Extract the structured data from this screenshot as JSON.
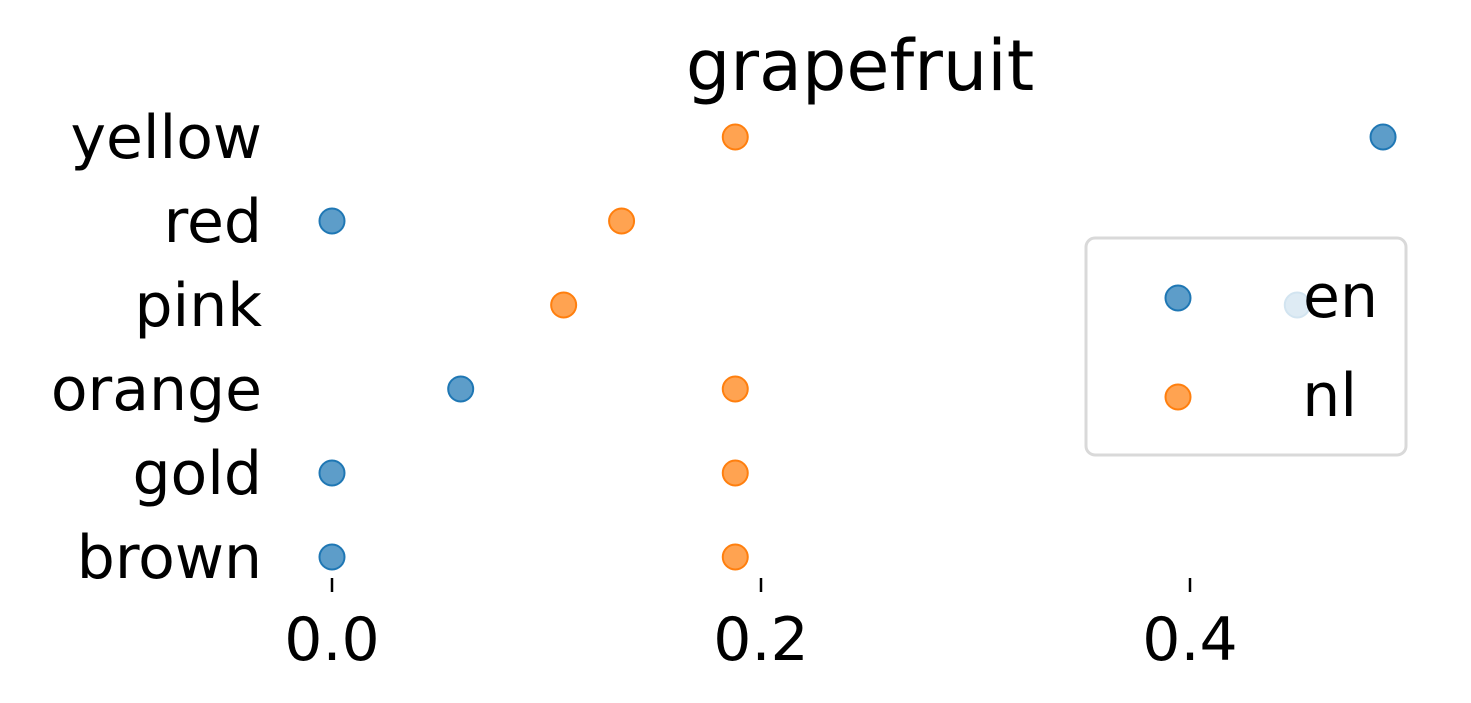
{
  "chart_data": {
    "type": "scatter",
    "title": "grapefruit",
    "categories": [
      "yellow",
      "red",
      "pink",
      "orange",
      "gold",
      "brown"
    ],
    "series": [
      {
        "name": "en",
        "color": "#1f77b4",
        "values": [
          0.49,
          0.0,
          0.45,
          0.06,
          0.0,
          0.0
        ]
      },
      {
        "name": "nl",
        "color": "#ff7f0e",
        "values": [
          0.188,
          0.135,
          0.108,
          0.188,
          0.188,
          0.188
        ]
      }
    ],
    "xticks": [
      0.0,
      0.2,
      0.4
    ],
    "xtick_labels": [
      "0.0",
      "0.2",
      "0.4"
    ],
    "xlim": [
      0.0,
      0.49
    ],
    "xlabel": "",
    "ylabel": "",
    "grid": false,
    "legend": "center-right"
  }
}
